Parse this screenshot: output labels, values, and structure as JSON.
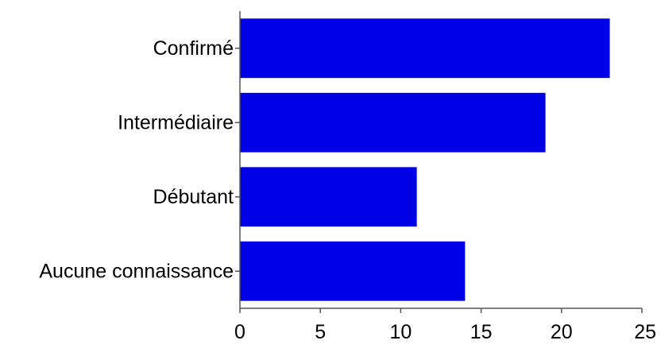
{
  "chart_data": {
    "type": "bar",
    "orientation": "horizontal",
    "title": "",
    "xlabel": "",
    "ylabel": "",
    "categories": [
      "Confirmé",
      "Intermédiaire",
      "Débutant",
      "Aucune connaissance"
    ],
    "values": [
      23,
      19,
      11,
      14
    ],
    "xlim": [
      0,
      25
    ],
    "xticks": [
      "0",
      "5",
      "10",
      "15",
      "20",
      "25"
    ],
    "bar_color": "#0000e6",
    "grid": false,
    "legend": "none"
  }
}
